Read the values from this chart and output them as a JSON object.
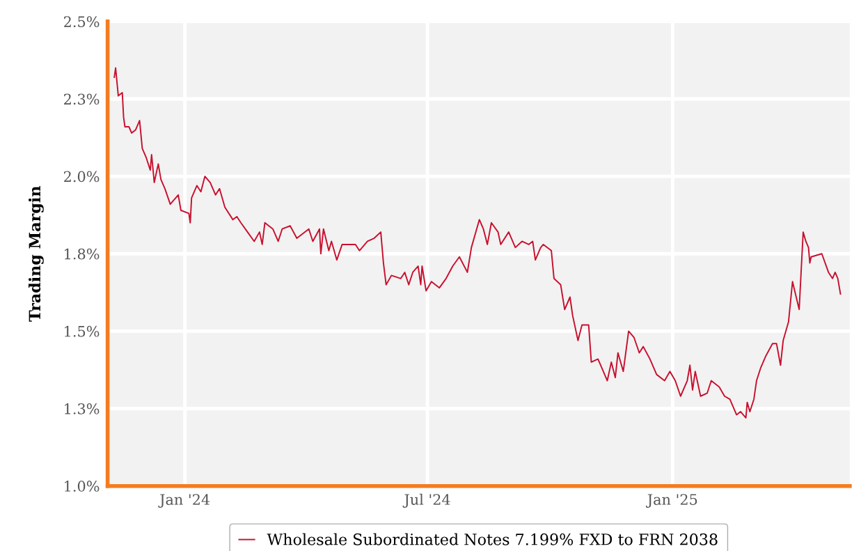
{
  "chart_data": {
    "type": "line",
    "ylabel": "Trading Margin",
    "xlim": [
      "2023-11-04",
      "2025-05-14"
    ],
    "xticks": [
      {
        "value": "2024-01-01",
        "label": "Jan '24"
      },
      {
        "value": "2024-07-01",
        "label": "Jul '24"
      },
      {
        "value": "2025-01-01",
        "label": "Jan '25"
      }
    ],
    "ylim": [
      1.0,
      2.5
    ],
    "yticks": [
      {
        "value": 1.0,
        "label": "1.0%"
      },
      {
        "value": 1.25,
        "label": "1.3%"
      },
      {
        "value": 1.5,
        "label": "1.5%"
      },
      {
        "value": 1.75,
        "label": "1.8%"
      },
      {
        "value": 2.0,
        "label": "2.0%"
      },
      {
        "value": 2.25,
        "label": "2.3%"
      },
      {
        "value": 2.5,
        "label": "2.5%"
      }
    ],
    "grid": true,
    "legend": "bottom",
    "marker": "none",
    "line_style": "solid",
    "x": [
      "2023-11-09",
      "2023-11-10",
      "2023-11-12",
      "2023-11-15",
      "2023-11-16",
      "2023-11-17",
      "2023-11-20",
      "2023-11-22",
      "2023-11-25",
      "2023-11-28",
      "2023-11-30",
      "2023-12-03",
      "2023-12-06",
      "2023-12-07",
      "2023-12-09",
      "2023-12-12",
      "2023-12-14",
      "2023-12-17",
      "2023-12-21",
      "2023-12-27",
      "2023-12-29",
      "2024-01-04",
      "2024-01-05",
      "2024-01-06",
      "2024-01-10",
      "2024-01-13",
      "2024-01-16",
      "2024-01-20",
      "2024-01-24",
      "2024-01-27",
      "2024-01-31",
      "2024-02-06",
      "2024-02-09",
      "2024-02-12",
      "2024-02-17",
      "2024-02-22",
      "2024-02-26",
      "2024-02-28",
      "2024-03-01",
      "2024-03-07",
      "2024-03-11",
      "2024-03-14",
      "2024-03-20",
      "2024-03-25",
      "2024-04-03",
      "2024-04-06",
      "2024-04-11",
      "2024-04-12",
      "2024-04-14",
      "2024-04-18",
      "2024-04-20",
      "2024-04-24",
      "2024-04-28",
      "2024-05-02",
      "2024-05-08",
      "2024-05-11",
      "2024-05-17",
      "2024-05-22",
      "2024-05-27",
      "2024-05-29",
      "2024-05-31",
      "2024-06-04",
      "2024-06-11",
      "2024-06-14",
      "2024-06-17",
      "2024-06-20",
      "2024-06-24",
      "2024-06-26",
      "2024-06-27",
      "2024-06-30",
      "2024-07-04",
      "2024-07-10",
      "2024-07-15",
      "2024-07-20",
      "2024-07-25",
      "2024-07-31",
      "2024-08-03",
      "2024-08-09",
      "2024-08-12",
      "2024-08-15",
      "2024-08-18",
      "2024-08-23",
      "2024-08-25",
      "2024-08-31",
      "2024-09-05",
      "2024-09-10",
      "2024-09-15",
      "2024-09-18",
      "2024-09-20",
      "2024-09-24",
      "2024-09-26",
      "2024-10-02",
      "2024-10-04",
      "2024-10-09",
      "2024-10-12",
      "2024-10-16",
      "2024-10-18",
      "2024-10-22",
      "2024-10-25",
      "2024-10-30",
      "2024-11-01",
      "2024-11-06",
      "2024-11-10",
      "2024-11-13",
      "2024-11-16",
      "2024-11-19",
      "2024-11-21",
      "2024-11-25",
      "2024-11-29",
      "2024-12-03",
      "2024-12-07",
      "2024-12-10",
      "2024-12-15",
      "2024-12-20",
      "2024-12-26",
      "2024-12-30",
      "2025-01-03",
      "2025-01-07",
      "2025-01-12",
      "2025-01-14",
      "2025-01-16",
      "2025-01-18",
      "2025-01-22",
      "2025-01-27",
      "2025-01-30",
      "2025-02-05",
      "2025-02-09",
      "2025-02-13",
      "2025-02-18",
      "2025-02-21",
      "2025-02-25",
      "2025-02-26",
      "2025-02-28",
      "2025-03-03",
      "2025-03-05",
      "2025-03-08",
      "2025-03-12",
      "2025-03-17",
      "2025-03-20",
      "2025-03-23",
      "2025-03-25",
      "2025-03-29",
      "2025-04-01",
      "2025-04-06",
      "2025-04-09",
      "2025-04-11",
      "2025-04-13",
      "2025-04-14",
      "2025-04-15",
      "2025-04-23",
      "2025-04-28",
      "2025-05-01",
      "2025-05-03",
      "2025-05-05",
      "2025-05-07"
    ],
    "series": [
      {
        "name": "Wholesale Subordinated Notes 7.199% FXD to FRN 2038",
        "color": "#c8102e",
        "values": [
          2.32,
          2.35,
          2.26,
          2.27,
          2.19,
          2.16,
          2.16,
          2.14,
          2.15,
          2.18,
          2.09,
          2.06,
          2.02,
          2.07,
          1.98,
          2.04,
          1.99,
          1.96,
          1.91,
          1.94,
          1.89,
          1.88,
          1.85,
          1.93,
          1.97,
          1.95,
          2.0,
          1.98,
          1.94,
          1.96,
          1.9,
          1.86,
          1.87,
          1.85,
          1.82,
          1.79,
          1.82,
          1.78,
          1.85,
          1.83,
          1.79,
          1.83,
          1.84,
          1.8,
          1.83,
          1.79,
          1.83,
          1.75,
          1.83,
          1.76,
          1.79,
          1.73,
          1.78,
          1.78,
          1.78,
          1.76,
          1.79,
          1.8,
          1.82,
          1.72,
          1.65,
          1.68,
          1.67,
          1.69,
          1.65,
          1.69,
          1.71,
          1.65,
          1.71,
          1.63,
          1.66,
          1.64,
          1.67,
          1.71,
          1.74,
          1.69,
          1.77,
          1.86,
          1.83,
          1.78,
          1.85,
          1.82,
          1.78,
          1.82,
          1.77,
          1.79,
          1.78,
          1.79,
          1.73,
          1.77,
          1.78,
          1.76,
          1.67,
          1.65,
          1.57,
          1.61,
          1.55,
          1.47,
          1.52,
          1.52,
          1.4,
          1.41,
          1.37,
          1.34,
          1.4,
          1.35,
          1.43,
          1.37,
          1.5,
          1.48,
          1.43,
          1.45,
          1.41,
          1.36,
          1.34,
          1.37,
          1.34,
          1.29,
          1.34,
          1.39,
          1.31,
          1.37,
          1.29,
          1.3,
          1.34,
          1.32,
          1.29,
          1.28,
          1.23,
          1.24,
          1.22,
          1.27,
          1.24,
          1.28,
          1.34,
          1.38,
          1.42,
          1.46,
          1.46,
          1.39,
          1.47,
          1.53,
          1.66,
          1.57,
          1.82,
          1.79,
          1.77,
          1.72,
          1.74,
          1.75,
          1.69,
          1.67,
          1.69,
          1.67,
          1.62
        ]
      }
    ]
  }
}
